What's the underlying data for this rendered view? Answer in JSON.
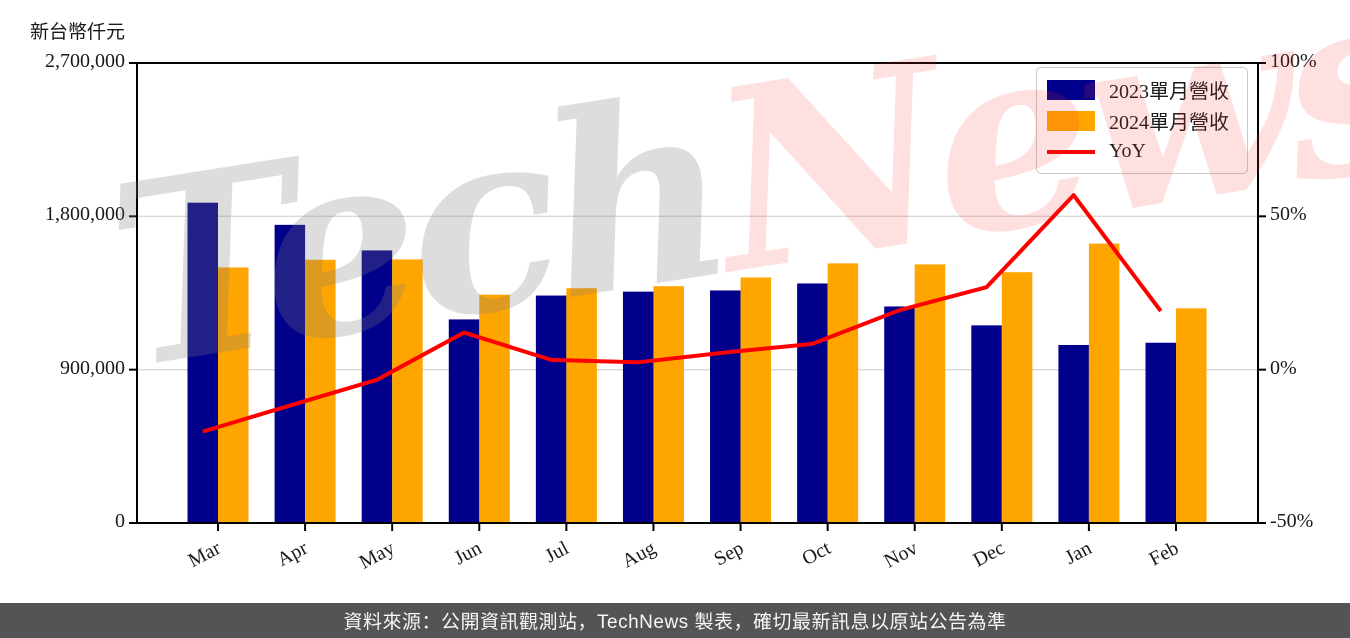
{
  "header": {
    "unit_label": "新台幣仟元"
  },
  "watermark": {
    "part1": "Tech",
    "part2": "News"
  },
  "footer": {
    "text": "資料來源：公開資訊觀測站，TechNews 製表，確切最新訊息以原站公告為準"
  },
  "colors": {
    "bar_2023": "#00008B",
    "bar_2024": "#FFA500",
    "yoy_line": "#FF0000",
    "grid": "#d9d9d9",
    "axis": "#000000",
    "footer_bg": "#545456"
  },
  "chart_data": {
    "type": "bar",
    "categories": [
      "Mar",
      "Apr",
      "May",
      "Jun",
      "Jul",
      "Aug",
      "Sep",
      "Oct",
      "Nov",
      "Dec",
      "Jan",
      "Feb"
    ],
    "series": [
      {
        "name": "2023單月營收",
        "type": "bar",
        "color": "#00008B",
        "axis": "left",
        "values": [
          1880000,
          1750000,
          1600000,
          1195000,
          1335000,
          1358000,
          1365000,
          1406000,
          1271000,
          1160000,
          1045000,
          1058000
        ]
      },
      {
        "name": "2024單月營收",
        "type": "bar",
        "color": "#FFA500",
        "axis": "left",
        "values": [
          1500000,
          1545000,
          1547000,
          1340000,
          1378000,
          1390000,
          1441000,
          1524000,
          1518000,
          1472000,
          1640000,
          1260000
        ]
      },
      {
        "name": "YoY",
        "type": "line",
        "color": "#FF0000",
        "axis": "right",
        "values": [
          -20.2,
          -11.7,
          -3.3,
          12.1,
          3.2,
          2.4,
          5.6,
          8.4,
          19.4,
          26.9,
          56.9,
          19.1
        ]
      }
    ],
    "left_axis": {
      "title": "新台幣仟元",
      "min": 0,
      "max": 2700000,
      "tick_values": [
        0,
        900000,
        1800000,
        2700000
      ],
      "tick_labels": [
        "0",
        "900,000",
        "1,800,000",
        "2,700,000"
      ]
    },
    "right_axis": {
      "min": -50,
      "max": 100,
      "tick_values": [
        -50,
        0,
        50,
        100
      ],
      "tick_labels": [
        "-50%",
        "0%",
        "50%",
        "100%"
      ]
    },
    "legend": {
      "position": "top-right"
    },
    "grid": true
  }
}
